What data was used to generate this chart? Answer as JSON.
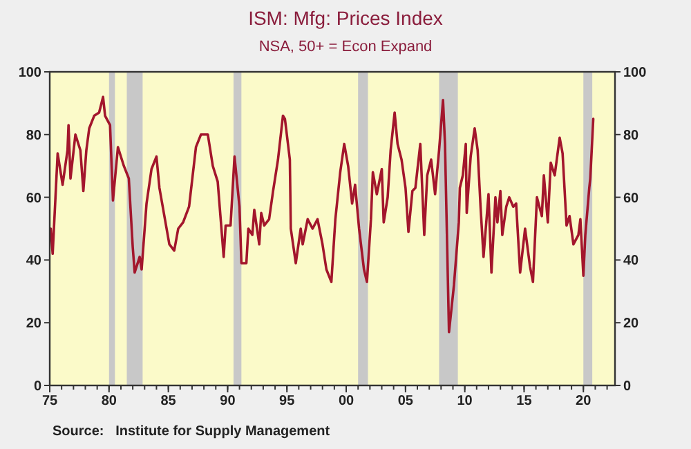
{
  "chart_data": {
    "type": "line",
    "title": "ISM: Mfg: Prices Index",
    "subtitle": "NSA, 50+ = Econ Expand",
    "annotations": [
      "Source:   Institute for Supply Management"
    ],
    "xlim": [
      "1975-01",
      "2022-09"
    ],
    "xticks": [
      {
        "value": "1975",
        "label": "75"
      },
      {
        "value": "1980",
        "label": "80"
      },
      {
        "value": "1985",
        "label": "85"
      },
      {
        "value": "1990",
        "label": "90"
      },
      {
        "value": "1995",
        "label": "95"
      },
      {
        "value": "2000",
        "label": "00"
      },
      {
        "value": "2005",
        "label": "05"
      },
      {
        "value": "2010",
        "label": "10"
      },
      {
        "value": "2015",
        "label": "15"
      },
      {
        "value": "2020",
        "label": "20"
      }
    ],
    "ylim": [
      0,
      100
    ],
    "yticks": [
      0,
      20,
      40,
      60,
      80,
      100
    ],
    "y2lim": [
      0,
      100
    ],
    "y2ticks": [
      0,
      20,
      40,
      60,
      80,
      100
    ],
    "grid": false,
    "bands": [
      {
        "axis": "x",
        "from": "1980-01",
        "to": "1980-07",
        "color": "#c8c8c8"
      },
      {
        "axis": "x",
        "from": "1981-07",
        "to": "1982-11",
        "color": "#c8c8c8"
      },
      {
        "axis": "x",
        "from": "1990-07",
        "to": "1991-03",
        "color": "#c8c8c8"
      },
      {
        "axis": "x",
        "from": "2001-01",
        "to": "2001-11",
        "color": "#c8c8c8"
      },
      {
        "axis": "x",
        "from": "2007-11",
        "to": "2009-06",
        "color": "#c8c8c8"
      },
      {
        "axis": "x",
        "from": "2020-01",
        "to": "2020-10",
        "color": "#c8c8c8"
      }
    ],
    "series": [
      {
        "color": "#a3162c",
        "x": [
          "1975-02",
          "1975-04",
          "1975-09",
          "1976-02",
          "1976-07",
          "1976-08",
          "1976-10",
          "1977-03",
          "1977-08",
          "1977-11",
          "1978-02",
          "1978-05",
          "1978-10",
          "1979-03",
          "1979-07",
          "1979-09",
          "1980-02",
          "1980-05",
          "1980-10",
          "1981-04",
          "1981-09",
          "1982-01",
          "1982-03",
          "1982-08",
          "1982-10",
          "1983-03",
          "1983-08",
          "1984-01",
          "1984-04",
          "1985-02",
          "1985-07",
          "1985-11",
          "1986-04",
          "1986-10",
          "1987-05",
          "1987-10",
          "1988-05",
          "1988-10",
          "1989-03",
          "1989-09",
          "1989-11",
          "1990-04",
          "1990-08",
          "1991-01",
          "1991-03",
          "1991-08",
          "1991-10",
          "1992-02",
          "1992-04",
          "1992-09",
          "1992-11",
          "1993-02",
          "1993-07",
          "1993-11",
          "1994-04",
          "1994-09",
          "1994-11",
          "1995-04",
          "1995-05",
          "1995-10",
          "1996-03",
          "1996-05",
          "1996-10",
          "1997-03",
          "1997-08",
          "1998-01",
          "1998-05",
          "1998-10",
          "1999-02",
          "1999-07",
          "1999-11",
          "2000-03",
          "2000-07",
          "2000-10",
          "2001-02",
          "2001-07",
          "2001-10",
          "2002-02",
          "2002-04",
          "2002-08",
          "2003-01",
          "2003-03",
          "2003-07",
          "2003-10",
          "2004-02",
          "2004-05",
          "2004-09",
          "2005-01",
          "2005-04",
          "2005-08",
          "2005-11",
          "2006-04",
          "2006-08",
          "2006-11",
          "2007-03",
          "2007-07",
          "2007-11",
          "2008-03",
          "2008-05",
          "2008-09",
          "2009-02",
          "2009-07",
          "2009-08",
          "2009-11",
          "2010-02",
          "2010-03",
          "2010-07",
          "2010-11",
          "2011-02",
          "2011-05",
          "2011-08",
          "2012-01",
          "2012-04",
          "2012-08",
          "2012-10",
          "2013-01",
          "2013-03",
          "2013-07",
          "2013-10",
          "2014-02",
          "2014-05",
          "2014-09",
          "2015-02",
          "2015-07",
          "2015-10",
          "2016-02",
          "2016-07",
          "2016-09",
          "2017-01",
          "2017-04",
          "2017-08",
          "2018-01",
          "2018-04",
          "2018-08",
          "2018-11",
          "2019-03",
          "2019-08",
          "2019-10",
          "2020-01",
          "2020-03",
          "2020-07",
          "2020-08",
          "2020-11"
        ],
        "values": [
          50,
          42,
          74,
          64,
          75,
          83,
          66,
          80,
          75,
          62,
          75,
          82,
          86,
          87,
          92,
          86,
          83,
          59,
          76,
          70,
          66,
          44,
          36,
          41,
          37,
          58,
          69,
          73,
          63,
          45,
          43,
          50,
          52,
          57,
          76,
          80,
          80,
          70,
          65,
          41,
          51,
          51,
          73,
          57,
          39,
          39,
          50,
          48,
          56,
          45,
          55,
          51,
          53,
          62,
          72,
          86,
          85,
          72,
          50,
          39,
          50,
          45,
          53,
          50,
          53,
          45,
          37,
          33,
          53,
          68,
          77,
          70,
          58,
          64,
          50,
          37,
          33,
          53,
          68,
          61,
          69,
          52,
          60,
          75,
          87,
          77,
          72,
          63,
          49,
          62,
          63,
          77,
          48,
          67,
          72,
          61,
          75,
          91,
          77,
          17,
          32,
          52,
          63,
          67,
          77,
          55,
          73,
          82,
          75,
          57,
          41,
          61,
          36,
          60,
          52,
          62,
          48,
          57,
          60,
          57,
          58,
          36,
          50,
          38,
          33,
          60,
          54,
          67,
          52,
          71,
          67,
          79,
          74,
          51,
          54,
          45,
          48,
          53,
          35,
          48,
          63,
          66,
          85
        ]
      }
    ]
  }
}
